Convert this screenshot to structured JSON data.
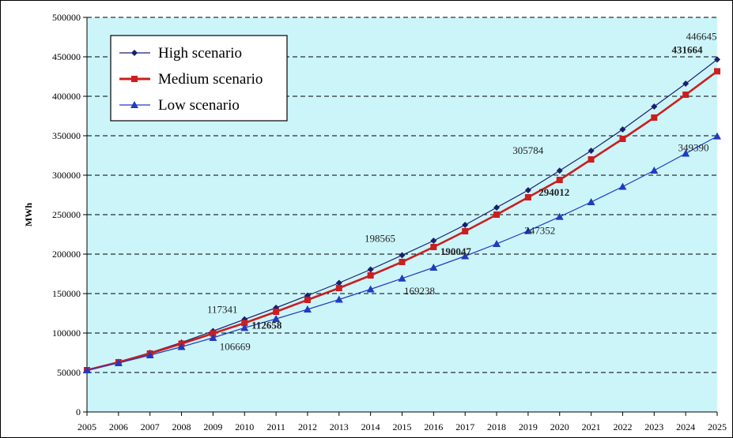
{
  "chart_data": {
    "type": "line",
    "title": "",
    "xlabel": "",
    "ylabel": "MWh",
    "ylim": [
      0,
      500000
    ],
    "yticks": [
      "0",
      "50000",
      "100000",
      "150000",
      "200000",
      "250000",
      "300000",
      "350000",
      "400000",
      "450000",
      "500000"
    ],
    "grid": "horizontal dashed",
    "legend_placement": "top-left",
    "plot_background": "#ccf5fa",
    "x": [
      "2005",
      "2006",
      "2007",
      "2008",
      "2009",
      "2010",
      "2011",
      "2012",
      "2013",
      "2014",
      "2015",
      "2016",
      "2017",
      "2018",
      "2019",
      "2020",
      "2021",
      "2022",
      "2023",
      "2024",
      "2025"
    ],
    "series": [
      {
        "name": "High scenario",
        "color": "#1a1f6e",
        "marker": "diamond",
        "values": [
          53000,
          63500,
          75000,
          88000,
          102500,
          117341,
          132000,
          147500,
          163500,
          180500,
          198565,
          217000,
          237000,
          259000,
          281000,
          305784,
          331000,
          358000,
          387000,
          416000,
          446645
        ]
      },
      {
        "name": "Medium scenario",
        "color": "#cc1e1e",
        "marker": "square",
        "values": [
          53000,
          63000,
          74000,
          86500,
          99500,
          112658,
          127000,
          142000,
          157000,
          173000,
          190047,
          209000,
          229000,
          250000,
          272000,
          294012,
          320000,
          346000,
          373000,
          402000,
          431664
        ]
      },
      {
        "name": "Low scenario",
        "color": "#1f3bc2",
        "marker": "triangle",
        "values": [
          53000,
          62000,
          72000,
          82500,
          94000,
          106669,
          118000,
          130000,
          142500,
          155500,
          169238,
          183000,
          197500,
          213000,
          229500,
          247352,
          266000,
          285500,
          306000,
          327500,
          349390
        ]
      }
    ],
    "annotations": [
      {
        "text": "117341",
        "series": 0,
        "x": "2010",
        "bold": false
      },
      {
        "text": "112658",
        "series": 1,
        "x": "2010",
        "bold": true
      },
      {
        "text": "106669",
        "series": 2,
        "x": "2010",
        "bold": false
      },
      {
        "text": "198565",
        "series": 0,
        "x": "2015",
        "bold": false
      },
      {
        "text": "190047",
        "series": 1,
        "x": "2016",
        "bold": true
      },
      {
        "text": "169238",
        "series": 2,
        "x": "2015",
        "bold": false
      },
      {
        "text": "305784",
        "series": 0,
        "x": "2020",
        "bold": false
      },
      {
        "text": "294012",
        "series": 1,
        "x": "2020",
        "bold": true
      },
      {
        "text": "247352",
        "series": 2,
        "x": "2020",
        "bold": false
      },
      {
        "text": "446645",
        "series": 0,
        "x": "2025",
        "bold": false
      },
      {
        "text": "431664",
        "series": 1,
        "x": "2025",
        "bold": true
      },
      {
        "text": "349390",
        "series": 2,
        "x": "2025",
        "bold": false
      }
    ]
  }
}
